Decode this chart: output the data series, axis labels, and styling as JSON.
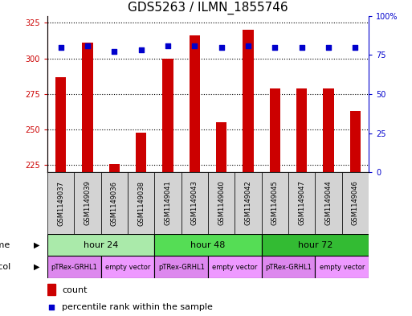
{
  "title": "GDS5263 / ILMN_1855746",
  "samples": [
    "GSM1149037",
    "GSM1149039",
    "GSM1149036",
    "GSM1149038",
    "GSM1149041",
    "GSM1149043",
    "GSM1149040",
    "GSM1149042",
    "GSM1149045",
    "GSM1149047",
    "GSM1149044",
    "GSM1149046"
  ],
  "counts": [
    287,
    311,
    226,
    248,
    300,
    316,
    255,
    320,
    279,
    279,
    279,
    263
  ],
  "percentiles": [
    80,
    81,
    77,
    78,
    81,
    81,
    80,
    81,
    80,
    80,
    80,
    80
  ],
  "ylim_left": [
    220,
    330
  ],
  "ylim_right": [
    0,
    100
  ],
  "yticks_left": [
    225,
    250,
    275,
    300,
    325
  ],
  "yticks_right": [
    0,
    25,
    50,
    75,
    100
  ],
  "bar_color": "#cc0000",
  "dot_color": "#0000cc",
  "bar_bottom": 220,
  "time_groups": [
    {
      "label": "hour 24",
      "start": 0,
      "end": 4,
      "color": "#aaeaaa"
    },
    {
      "label": "hour 48",
      "start": 4,
      "end": 8,
      "color": "#55dd55"
    },
    {
      "label": "hour 72",
      "start": 8,
      "end": 12,
      "color": "#33bb33"
    }
  ],
  "protocol_groups": [
    {
      "label": "pTRex-GRHL1",
      "start": 0,
      "end": 2,
      "color": "#dd88ee"
    },
    {
      "label": "empty vector",
      "start": 2,
      "end": 4,
      "color": "#ee99ff"
    },
    {
      "label": "pTRex-GRHL1",
      "start": 4,
      "end": 6,
      "color": "#dd88ee"
    },
    {
      "label": "empty vector",
      "start": 6,
      "end": 8,
      "color": "#ee99ff"
    },
    {
      "label": "pTRex-GRHL1",
      "start": 8,
      "end": 10,
      "color": "#dd88ee"
    },
    {
      "label": "empty vector",
      "start": 10,
      "end": 12,
      "color": "#ee99ff"
    }
  ],
  "background_color": "white",
  "ax_label_color_left": "#cc0000",
  "ax_label_color_right": "#0000cc",
  "title_fontsize": 11,
  "tick_fontsize": 7,
  "sample_label_fontsize": 6
}
